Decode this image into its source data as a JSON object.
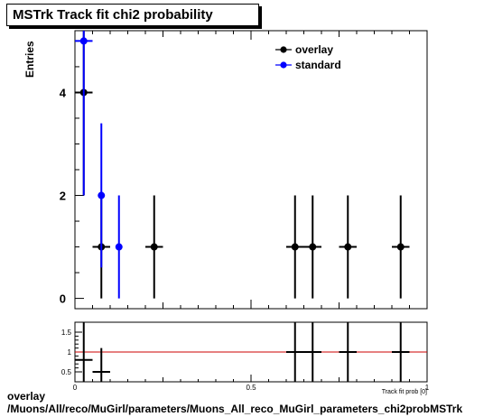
{
  "title": "MSTrk Track fit chi2 probability",
  "footer": {
    "line1": "overlay",
    "line2": "/Muons/All/reco/MuGirl/parameters/Muons_All_reco_MuGirl_parameters_chi2probMSTrk"
  },
  "chart_data": [
    {
      "type": "scatter",
      "ylabel": "Entries",
      "xlim": [
        0,
        1
      ],
      "ylim": [
        -0.2,
        5.2
      ],
      "y_ticks": [
        0,
        2,
        4
      ],
      "legend_position": "top-right",
      "series": [
        {
          "name": "overlay",
          "color": "#000000",
          "points": [
            {
              "x": 0.025,
              "xerr": 0.025,
              "y": 4,
              "ylo": 2,
              "yhi": 5.2
            },
            {
              "x": 0.075,
              "xerr": 0.025,
              "y": 1,
              "ylo": 0,
              "yhi": 2
            },
            {
              "x": 0.225,
              "xerr": 0.025,
              "y": 1,
              "ylo": 0,
              "yhi": 2
            },
            {
              "x": 0.625,
              "xerr": 0.025,
              "y": 1,
              "ylo": 0,
              "yhi": 2
            },
            {
              "x": 0.675,
              "xerr": 0.025,
              "y": 1,
              "ylo": 0,
              "yhi": 2
            },
            {
              "x": 0.775,
              "xerr": 0.025,
              "y": 1,
              "ylo": 0,
              "yhi": 2
            },
            {
              "x": 0.925,
              "xerr": 0.025,
              "y": 1,
              "ylo": 0,
              "yhi": 2
            }
          ]
        },
        {
          "name": "standard",
          "color": "#0000ff",
          "points": [
            {
              "x": 0.025,
              "xerr": 0.025,
              "y": 5,
              "ylo": 2,
              "yhi": 5.2
            },
            {
              "x": 0.075,
              "xerr": 0.0,
              "y": 2,
              "ylo": 0.6,
              "yhi": 3.4
            },
            {
              "x": 0.125,
              "xerr": 0.0,
              "y": 1,
              "ylo": 0,
              "yhi": 2
            }
          ]
        }
      ]
    },
    {
      "type": "scatter",
      "xlabel": "Track fit prob [0]",
      "xlim": [
        0,
        1
      ],
      "ylim": [
        0.25,
        1.75
      ],
      "x_ticks": [
        "0",
        "0.5",
        "1"
      ],
      "y_ticks": [
        "0.5",
        "1",
        "1.5"
      ],
      "reference_line": {
        "y": 1,
        "color": "#cc0000"
      },
      "series": [
        {
          "name": "ratio",
          "color": "#000000",
          "points": [
            {
              "x": 0.025,
              "xerr": 0.025,
              "y": 0.8,
              "ylo": 0.25,
              "yhi": 1.75
            },
            {
              "x": 0.075,
              "xerr": 0.025,
              "y": 0.5,
              "ylo": 0.25,
              "yhi": 1.1
            },
            {
              "x": 0.625,
              "xerr": 0.025,
              "y": 1,
              "ylo": 0.25,
              "yhi": 1.75
            },
            {
              "x": 0.675,
              "xerr": 0.025,
              "y": 1,
              "ylo": 0.25,
              "yhi": 1.75
            },
            {
              "x": 0.775,
              "xerr": 0.025,
              "y": 1,
              "ylo": 0.25,
              "yhi": 1.75
            },
            {
              "x": 0.925,
              "xerr": 0.025,
              "y": 1,
              "ylo": 0.25,
              "yhi": 1.75
            }
          ]
        }
      ]
    }
  ]
}
